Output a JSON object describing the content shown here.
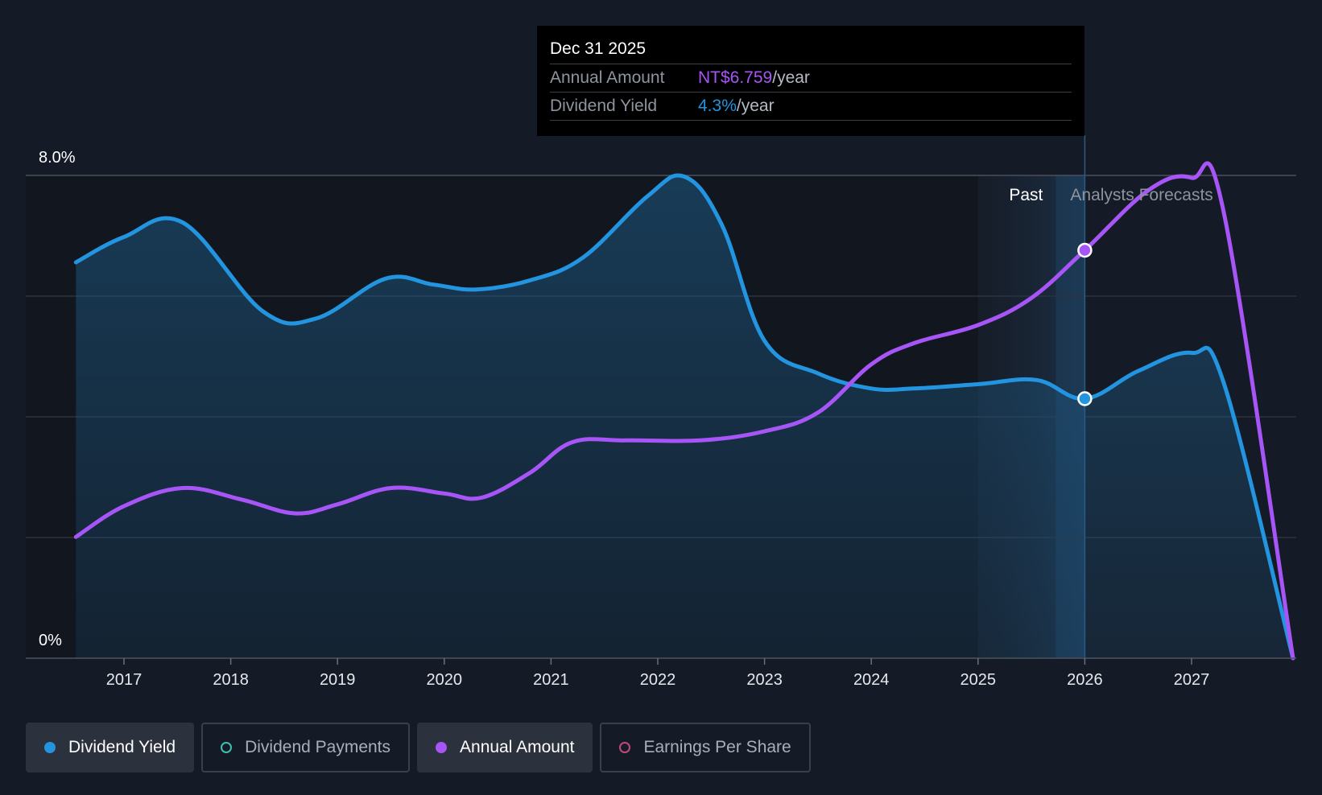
{
  "chart_data": {
    "type": "area",
    "x_ticks": [
      "2017",
      "2018",
      "2019",
      "2020",
      "2021",
      "2022",
      "2023",
      "2024",
      "2025",
      "2026",
      "2027"
    ],
    "y_labels": {
      "top": "8.0%",
      "bottom": "0%"
    },
    "ylim_pct": [
      0,
      8
    ],
    "xlim_years": [
      2016.55,
      2027.95
    ],
    "regions": {
      "past_label": "Past",
      "forecast_label": "Analysts Forecasts"
    },
    "series": [
      {
        "name": "Dividend Yield",
        "unit": "%",
        "color": "#2394df",
        "points": [
          [
            2016.55,
            6.56
          ],
          [
            2017.0,
            6.98
          ],
          [
            2017.55,
            7.22
          ],
          [
            2018.3,
            5.75
          ],
          [
            2018.8,
            5.63
          ],
          [
            2019.45,
            6.29
          ],
          [
            2019.9,
            6.19
          ],
          [
            2020.3,
            6.11
          ],
          [
            2020.8,
            6.26
          ],
          [
            2021.3,
            6.64
          ],
          [
            2021.9,
            7.65
          ],
          [
            2022.25,
            7.98
          ],
          [
            2022.6,
            7.18
          ],
          [
            2023.0,
            5.26
          ],
          [
            2023.5,
            4.72
          ],
          [
            2024.0,
            4.47
          ],
          [
            2024.4,
            4.47
          ],
          [
            2025.0,
            4.54
          ],
          [
            2025.55,
            4.61
          ],
          [
            2026.0,
            4.3
          ],
          [
            2026.5,
            4.76
          ],
          [
            2027.0,
            5.06
          ],
          [
            2027.3,
            4.57
          ],
          [
            2027.95,
            0.0
          ]
        ]
      },
      {
        "name": "Annual Amount",
        "unit": "NT$",
        "color": "#a855f7",
        "scale_note": "plotted on same vertical scale (NT$6.759 at 2026)",
        "points": [
          [
            2016.55,
            2.01
          ],
          [
            2017.0,
            2.52
          ],
          [
            2017.55,
            2.82
          ],
          [
            2018.1,
            2.63
          ],
          [
            2018.6,
            2.4
          ],
          [
            2019.0,
            2.55
          ],
          [
            2019.5,
            2.82
          ],
          [
            2020.0,
            2.73
          ],
          [
            2020.35,
            2.66
          ],
          [
            2020.8,
            3.07
          ],
          [
            2021.2,
            3.58
          ],
          [
            2021.7,
            3.61
          ],
          [
            2022.4,
            3.61
          ],
          [
            2023.0,
            3.76
          ],
          [
            2023.5,
            4.07
          ],
          [
            2024.0,
            4.87
          ],
          [
            2024.4,
            5.22
          ],
          [
            2025.0,
            5.52
          ],
          [
            2025.5,
            5.97
          ],
          [
            2026.0,
            6.76
          ],
          [
            2026.6,
            7.76
          ],
          [
            2027.0,
            7.96
          ],
          [
            2027.3,
            7.4
          ],
          [
            2027.95,
            0.0
          ]
        ]
      }
    ],
    "highlight": {
      "x": 2026.0,
      "date": "Dec 31 2025"
    }
  },
  "tooltip": {
    "date": "Dec 31 2025",
    "rows": [
      {
        "label": "Annual Amount",
        "value": "NT$6.759",
        "unit": "/year"
      },
      {
        "label": "Dividend Yield",
        "value": "4.3%",
        "unit": "/year"
      }
    ]
  },
  "legend": [
    {
      "label": "Dividend Yield",
      "active": true,
      "color": "#2394df"
    },
    {
      "label": "Dividend Payments",
      "active": false,
      "color": "#3fbfae"
    },
    {
      "label": "Annual Amount",
      "active": true,
      "color": "#a855f7"
    },
    {
      "label": "Earnings Per Share",
      "active": false,
      "color": "#c04a7a"
    }
  ]
}
